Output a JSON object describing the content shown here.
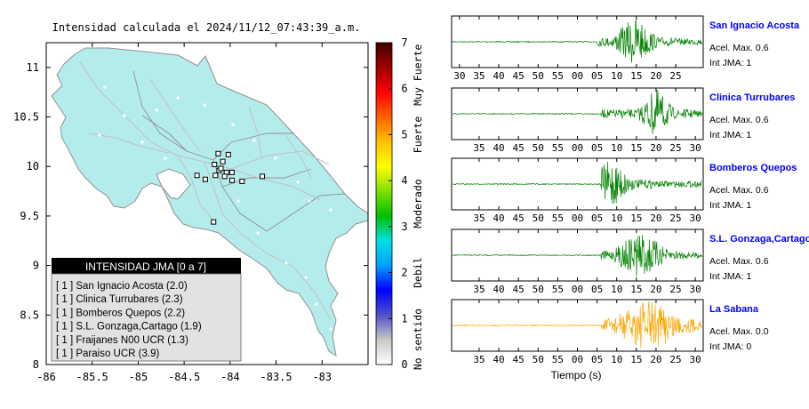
{
  "chart_data": [
    {
      "type": "map",
      "title": "Intensidad calculada el 2024/11/12_07:43:39_a.m.",
      "xlim": [
        -86,
        -82.5
      ],
      "ylim": [
        8,
        11.25
      ],
      "xticks": [
        -86,
        -85.5,
        -85,
        -84.5,
        -84,
        -83.5,
        -83
      ],
      "xtick_labels": [
        "-86",
        "-85.5",
        "-85",
        "-84.5",
        "-84",
        "-83.5",
        "-83"
      ],
      "yticks": [
        8,
        8.5,
        9,
        9.5,
        10,
        10.5,
        11
      ],
      "ytick_labels": [
        "8",
        "8.5",
        "9",
        "9.5",
        "10",
        "10.5",
        "11"
      ],
      "stations": [
        {
          "lon": -84.02,
          "lat": 10.12
        },
        {
          "lon": -84.13,
          "lat": 10.13
        },
        {
          "lon": -84.17,
          "lat": 10.02
        },
        {
          "lon": -84.08,
          "lat": 10.05
        },
        {
          "lon": -84.04,
          "lat": 9.94
        },
        {
          "lon": -84.12,
          "lat": 9.96
        },
        {
          "lon": -84.06,
          "lat": 9.9
        },
        {
          "lon": -84.16,
          "lat": 9.91
        },
        {
          "lon": -84.36,
          "lat": 9.91
        },
        {
          "lon": -84.27,
          "lat": 9.87
        },
        {
          "lon": -83.98,
          "lat": 9.94
        },
        {
          "lon": -83.87,
          "lat": 9.85
        },
        {
          "lon": -83.65,
          "lat": 9.9
        },
        {
          "lon": -84.18,
          "lat": 9.44
        },
        {
          "lon": -83.98,
          "lat": 9.86
        },
        {
          "lon": -84.1,
          "lat": 9.98
        }
      ]
    },
    {
      "type": "colorbar",
      "range": [
        0,
        7
      ],
      "ticks": [
        "0",
        "1",
        "2",
        "3",
        "4",
        "5",
        "6",
        "7"
      ],
      "category_labels": [
        "No sentido",
        "Debil",
        "Moderado",
        "Fuerte",
        "Muy Fuerte"
      ],
      "colors": [
        "#ffffff",
        "#c8c8c8",
        "#5050c8",
        "#0000ff",
        "#00a0ff",
        "#00e0e0",
        "#00c000",
        "#80e000",
        "#ffff00",
        "#ffc000",
        "#ff6000",
        "#ff0000",
        "#a00000",
        "#400000"
      ]
    },
    {
      "type": "waveform",
      "xlabel": "Tiempo (s)",
      "traces": [
        {
          "name": "San Ignacio Acosta",
          "color": "#008000",
          "tick_labels": [
            "30",
            "35",
            "40",
            "45",
            "50",
            "55",
            "00",
            "05",
            "10",
            "15",
            "20",
            "25"
          ],
          "peak_window": [
            13,
            16
          ],
          "onset": 5
        },
        {
          "name": "Clinica Turrubares",
          "color": "#008000",
          "tick_labels": [
            "35",
            "40",
            "45",
            "50",
            "55",
            "00",
            "05",
            "10",
            "15",
            "20",
            "25",
            "30"
          ],
          "peak_window": [
            19,
            21
          ],
          "onset": 6
        },
        {
          "name": "Bomberos Quepos",
          "color": "#008000",
          "tick_labels": [
            "35",
            "40",
            "45",
            "50",
            "55",
            "00",
            "05",
            "10",
            "15",
            "20",
            "25",
            "30"
          ],
          "peak_window": [
            7,
            10
          ],
          "onset": 6
        },
        {
          "name": "S.L. Gonzaga,Cartago",
          "color": "#008000",
          "tick_labels": [
            "35",
            "40",
            "45",
            "50",
            "55",
            "00",
            "05",
            "10",
            "15",
            "20",
            "25",
            "30"
          ],
          "peak_window": [
            14,
            18
          ],
          "onset": 6
        },
        {
          "name": "La Sabana",
          "color": "#ffa500",
          "tick_labels": [
            "35",
            "40",
            "45",
            "50",
            "55",
            "00",
            "05",
            "10",
            "15",
            "20",
            "25",
            "30"
          ],
          "peak_window": [
            15,
            21
          ],
          "onset": 6
        }
      ]
    }
  ],
  "legend": {
    "header": "INTENSIDAD JMA [0 a 7]",
    "items": [
      "[ 1 ]  San Ignacio Acosta (2.0)",
      "[ 1 ]  Clinica Turrubares (2.3)",
      "[ 1 ]  Bomberos Quepos (2.2)",
      "[ 1 ]  S.L. Gonzaga,Cartago (1.9)",
      "[ 1 ]  Fraijanes N00 UCR (1.3)",
      "[ 1 ]  Paraiso UCR (3.9)"
    ]
  },
  "stations": [
    {
      "name": "San Ignacio Acosta",
      "accel": "Acel. Max. 0.6",
      "int": "Int JMA: 1"
    },
    {
      "name": "Clinica Turrubares",
      "accel": "Acel. Max. 0.6",
      "int": "Int JMA: 1"
    },
    {
      "name": "Bomberos Quepos",
      "accel": "Acel. Max. 0.6",
      "int": "Int JMA: 1"
    },
    {
      "name": "S.L. Gonzaga,Cartago",
      "accel": "Acel. Max. 0.6",
      "int": "Int JMA: 1"
    },
    {
      "name": "La Sabana",
      "accel": "Acel. Max. 0.0",
      "int": "Int JMA: 0"
    }
  ],
  "colors": {
    "land": "#b4ecec",
    "border": "#909090",
    "road": "#c0c0c0",
    "station_name": "#0000ff",
    "trace_green": "#008000",
    "trace_orange": "#ffa500"
  }
}
